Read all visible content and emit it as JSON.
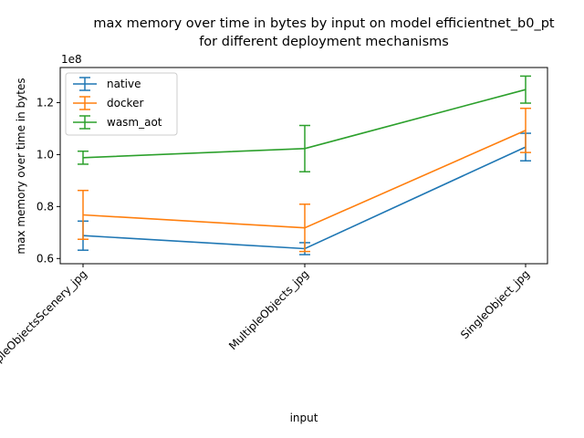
{
  "chart_data": {
    "type": "line",
    "title_line1": "max memory over time in bytes by input on model efficientnet_b0_pt",
    "title_line2": "for different deployment mechanisms",
    "xlabel": "input",
    "ylabel": "max memory over time in bytes",
    "y_offset_label": "1e8",
    "categories": [
      "MultipleObjectsScenery_jpg",
      "MultipleObjects_jpg",
      "SingleObject_jpg"
    ],
    "ylim": [
      0.58,
      1.335
    ],
    "y_scale_factor": 100000000,
    "yticks": [
      0.6,
      0.8,
      1.0,
      1.2
    ],
    "ytick_labels": [
      "0.6",
      "0.8",
      "1.0",
      "1.2"
    ],
    "legend_placement": "top-left",
    "grid": false,
    "series": [
      {
        "name": "native",
        "color": "#1f77b4",
        "values": [
          0.688,
          0.638,
          1.029
        ],
        "err_low": [
          0.632,
          0.615,
          0.976
        ],
        "err_high": [
          0.744,
          0.661,
          1.082
        ]
      },
      {
        "name": "docker",
        "color": "#ff7f0e",
        "values": [
          0.768,
          0.718,
          1.093
        ],
        "err_low": [
          0.674,
          0.627,
          1.008
        ],
        "err_high": [
          0.862,
          0.809,
          1.178
        ]
      },
      {
        "name": "wasm_aot",
        "color": "#2ca02c",
        "values": [
          0.988,
          1.023,
          1.25
        ],
        "err_low": [
          0.963,
          0.934,
          1.198
        ],
        "err_high": [
          1.013,
          1.112,
          1.302
        ]
      }
    ]
  }
}
